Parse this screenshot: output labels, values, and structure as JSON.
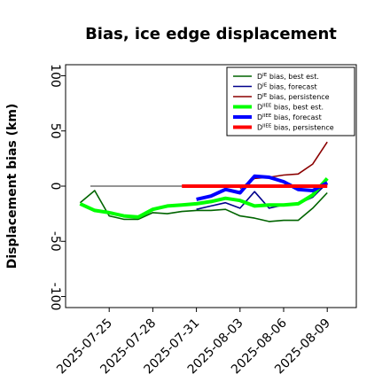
{
  "chart_data": {
    "type": "line",
    "title": "Bias, ice edge displacement",
    "xlabel": "",
    "ylabel": "Displacement bias (km)",
    "ylim": [
      -110,
      110
    ],
    "xlim": [
      "2025-07-22",
      "2025-08-11"
    ],
    "x_ticks": [
      "2025-07-25",
      "2025-07-28",
      "2025-07-31",
      "2025-08-03",
      "2025-08-06",
      "2025-08-09"
    ],
    "highlight_tick": "2025-07-31",
    "highlight_color": "#228b22",
    "y_ticks": [
      100,
      50,
      0,
      -50,
      -100
    ],
    "grid": false,
    "legend_position": "top-right",
    "zero_line": {
      "y": 0,
      "color": "#555555"
    },
    "series": [
      {
        "name": "Dᴵᴱ bias, best est.",
        "legend_main": "D",
        "legend_sup": "IE",
        "legend_rest": " bias, best est.",
        "color": "#006400",
        "width": 1.6,
        "x": [
          "2025-07-23",
          "2025-07-24",
          "2025-07-25",
          "2025-07-26",
          "2025-07-27",
          "2025-07-28",
          "2025-07-29",
          "2025-07-30",
          "2025-07-31",
          "2025-08-01",
          "2025-08-02",
          "2025-08-03",
          "2025-08-04",
          "2025-08-05",
          "2025-08-06",
          "2025-08-07",
          "2025-08-08",
          "2025-08-09"
        ],
        "y": [
          -15,
          -4,
          -27,
          -30,
          -30,
          -24,
          -25,
          -23,
          -22,
          -22,
          -21,
          -27,
          -29,
          -32,
          -31,
          -31,
          -20,
          -6
        ]
      },
      {
        "name": "Dᴵᴱ bias, forecast",
        "legend_main": "D",
        "legend_sup": "IE",
        "legend_rest": " bias, forecast",
        "color": "#00008b",
        "width": 1.6,
        "x": [
          "2025-07-31",
          "2025-08-01",
          "2025-08-02",
          "2025-08-03",
          "2025-08-04",
          "2025-08-05",
          "2025-08-06",
          "2025-08-07",
          "2025-08-08",
          "2025-08-09"
        ],
        "y": [
          -21,
          -18,
          -15,
          -20,
          -5,
          -20,
          -17,
          -16,
          -10,
          3
        ]
      },
      {
        "name": "Dᴵᴱ bias, persistence",
        "legend_main": "D",
        "legend_sup": "IE",
        "legend_rest": " bias, persistence",
        "color": "#8b0000",
        "width": 1.6,
        "x": [
          "2025-08-03",
          "2025-08-04",
          "2025-08-05",
          "2025-08-06",
          "2025-08-07",
          "2025-08-08",
          "2025-08-09"
        ],
        "y": [
          -2,
          7,
          8,
          10,
          11,
          20,
          40
        ]
      },
      {
        "name": "Dᴵᴵᴱᴱ bias, best est.",
        "legend_main": "D",
        "legend_sup": "IIEE",
        "legend_rest": " bias, best est.",
        "color": "#00ff00",
        "width": 4,
        "x": [
          "2025-07-23",
          "2025-07-24",
          "2025-07-25",
          "2025-07-26",
          "2025-07-27",
          "2025-07-28",
          "2025-07-29",
          "2025-07-30",
          "2025-07-31",
          "2025-08-01",
          "2025-08-02",
          "2025-08-03",
          "2025-08-04",
          "2025-08-05",
          "2025-08-06",
          "2025-08-07",
          "2025-08-08",
          "2025-08-09"
        ],
        "y": [
          -16,
          -22,
          -24,
          -27,
          -28,
          -21,
          -18,
          -17,
          -16,
          -14,
          -11,
          -13,
          -18,
          -17,
          -17,
          -16,
          -8,
          7
        ]
      },
      {
        "name": "Dᴵᴵᴱᴱ bias, forecast",
        "legend_main": "D",
        "legend_sup": "IIEE",
        "legend_rest": " bias, forecast",
        "color": "#0000ff",
        "width": 4,
        "x": [
          "2025-07-31",
          "2025-08-01",
          "2025-08-02",
          "2025-08-03",
          "2025-08-04",
          "2025-08-05",
          "2025-08-06",
          "2025-08-07",
          "2025-08-08",
          "2025-08-09"
        ],
        "y": [
          -12,
          -9,
          -3,
          -6,
          9,
          8,
          4,
          -3,
          -4,
          3
        ]
      },
      {
        "name": "Dᴵᴵᴱᴱ bias, persistence",
        "legend_main": "D",
        "legend_sup": "IIEE",
        "legend_rest": " bias, persistence",
        "color": "#ff0000",
        "width": 4,
        "x": [
          "2025-07-30",
          "2025-08-09"
        ],
        "y": [
          0,
          0
        ]
      }
    ]
  }
}
